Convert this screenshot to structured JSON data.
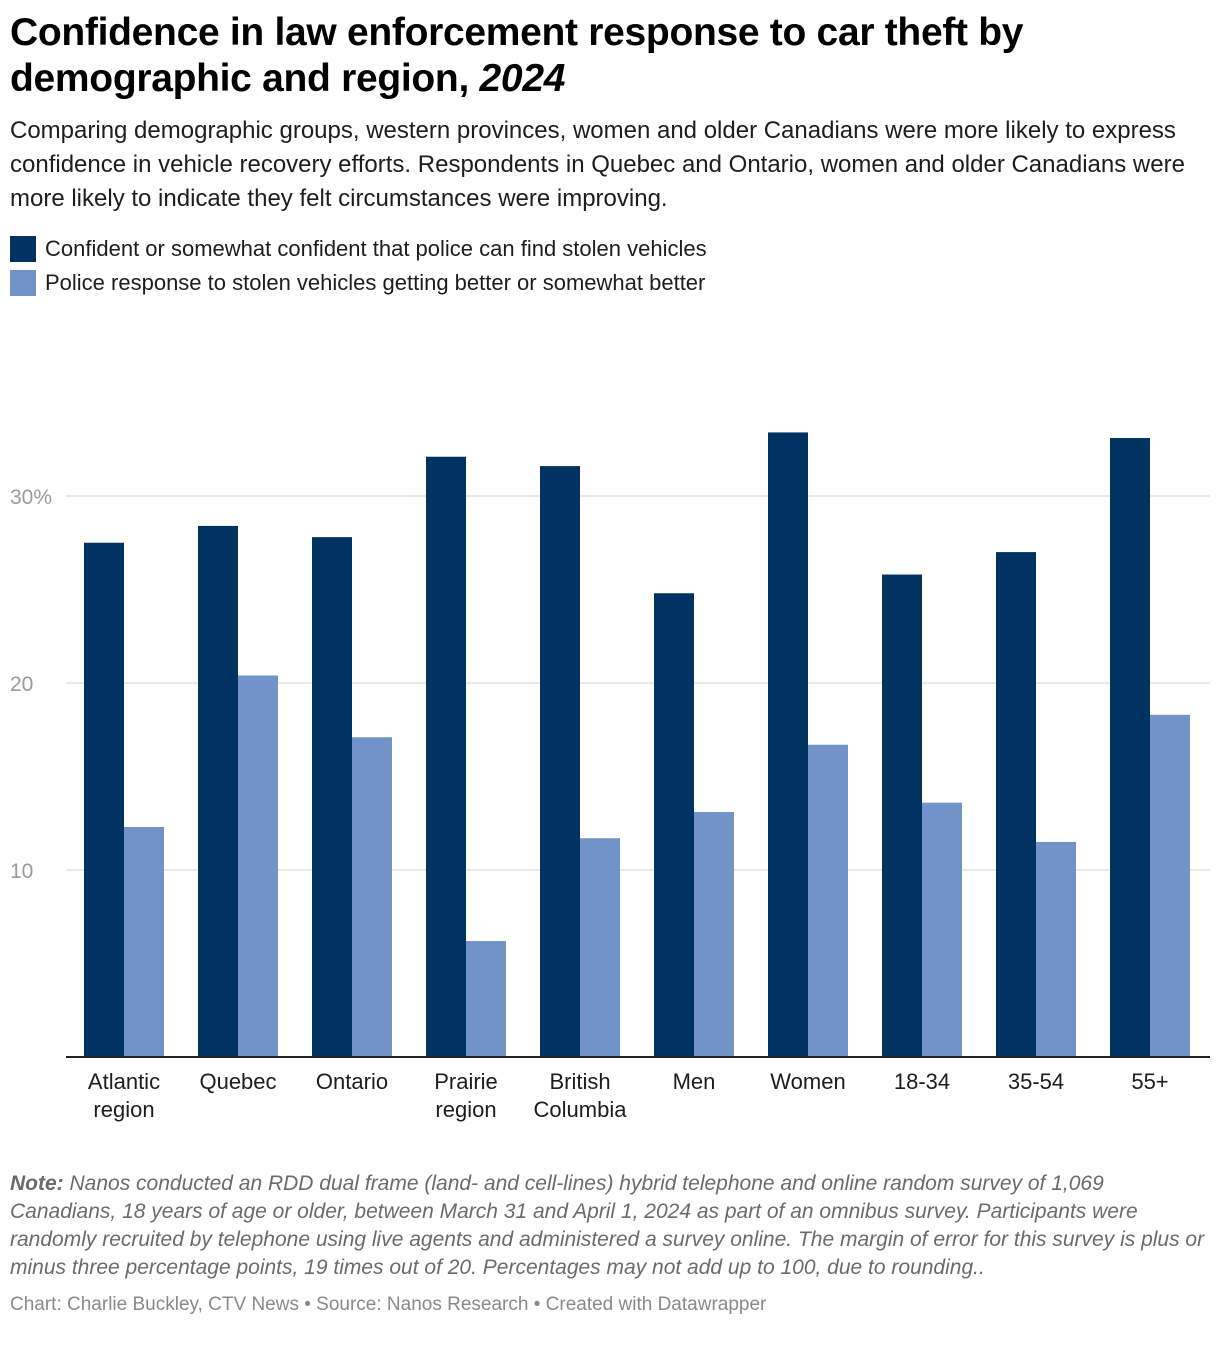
{
  "header": {
    "title": "Confidence in law enforcement response to car theft by demographic and region,",
    "title_year": "2024",
    "subtitle": "Comparing demographic groups, western provinces, women and older Canadians were more likely to express confidence in vehicle recovery efforts. Respondents in Quebec and Ontario, women and older Canadians were more likely to indicate they felt circumstances were improving."
  },
  "colors": {
    "series1": "#003361",
    "series2": "#7293c8",
    "grid": "#e2e2e2",
    "axis": "#222222",
    "tick": "#9a9a9a"
  },
  "chart_data": {
    "type": "bar",
    "categories": [
      "Atlantic region",
      "Quebec",
      "Ontario",
      "Prairie region",
      "British Columbia",
      "Men",
      "Women",
      "18-34",
      "35-54",
      "55+"
    ],
    "category_lines": [
      [
        "Atlantic",
        "region"
      ],
      [
        "Quebec"
      ],
      [
        "Ontario"
      ],
      [
        "Prairie",
        "region"
      ],
      [
        "British",
        "Columbia"
      ],
      [
        "Men"
      ],
      [
        "Women"
      ],
      [
        "18-34"
      ],
      [
        "35-54"
      ],
      [
        "55+"
      ]
    ],
    "series": [
      {
        "name": "Confident or somewhat confident that police can find stolen vehicles",
        "values": [
          27.5,
          28.4,
          27.8,
          32.1,
          31.6,
          24.8,
          33.4,
          25.8,
          27.0,
          33.1
        ]
      },
      {
        "name": "Police response to stolen vehicles getting better or somewhat better",
        "values": [
          12.3,
          20.4,
          17.1,
          6.2,
          11.7,
          13.1,
          16.7,
          13.6,
          11.5,
          18.3
        ]
      }
    ],
    "yticks": [
      10,
      20,
      30
    ],
    "ytick_labels": [
      "10",
      "20",
      "30%"
    ],
    "ylim": [
      0,
      35
    ],
    "grid": true,
    "legend_position": "top-left"
  },
  "footer": {
    "note_label": "Note:",
    "note_text": " Nanos conducted an RDD dual frame (land- and cell-lines) hybrid telephone and online random survey of 1,069 Canadians, 18 years of age or older, between March 31 and April 1, 2024 as part of an omnibus survey. Participants were randomly recruited by telephone using live agents and administered a survey online. The margin of error for this survey is plus or minus three percentage points, 19 times out of 20. Percentages may not add up to 100, due to rounding..",
    "credit": "Chart: Charlie Buckley, CTV News • Source: Nanos Research • Created with Datawrapper"
  }
}
